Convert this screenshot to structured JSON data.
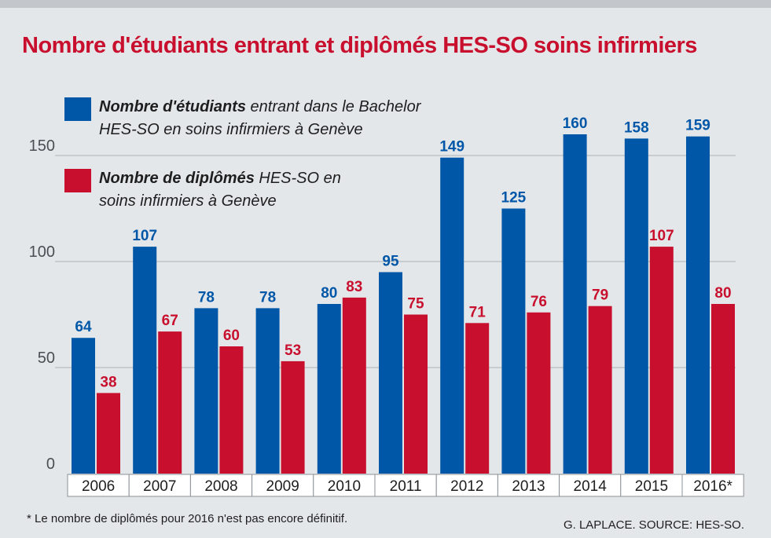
{
  "title": "Nombre d'étudiants entrant et diplômés HES-SO soins infirmiers",
  "colors": {
    "entrants": "#0057a8",
    "diplomes": "#c8102e"
  },
  "legend": [
    {
      "bold": "Nombre d'étudiants",
      "line1_rest": " entrant dans le Bachelor",
      "line2": "HES-SO en soins infirmiers à Genève"
    },
    {
      "bold": "Nombre de diplômés",
      "line1_rest": " HES-SO en",
      "line2": "soins infirmiers à Genève"
    }
  ],
  "footnote": "* Le nombre de diplômés pour 2016 n'est pas encore définitif.",
  "credit": "G. LAPLACE. SOURCE: HES-SO.",
  "chart_data": {
    "type": "bar",
    "title": "Nombre d'étudiants entrant et diplômés HES-SO soins infirmiers",
    "xlabel": "",
    "ylabel": "",
    "categories": [
      "2006",
      "2007",
      "2008",
      "2009",
      "2010",
      "2011",
      "2012",
      "2013",
      "2014",
      "2015",
      "2016*"
    ],
    "series": [
      {
        "name": "Nombre d'étudiants entrant dans le Bachelor HES-SO en soins infirmiers à Genève",
        "values": [
          64,
          107,
          78,
          78,
          80,
          95,
          149,
          125,
          160,
          158,
          159
        ]
      },
      {
        "name": "Nombre de diplômés HES-SO en soins infirmiers à Genève",
        "values": [
          38,
          67,
          60,
          53,
          83,
          75,
          71,
          76,
          79,
          107,
          80
        ]
      }
    ],
    "ylim": [
      0,
      165
    ],
    "yticks": [
      0,
      50,
      100,
      150
    ],
    "grid": true,
    "legend": "top-left",
    "data_labels": true
  }
}
